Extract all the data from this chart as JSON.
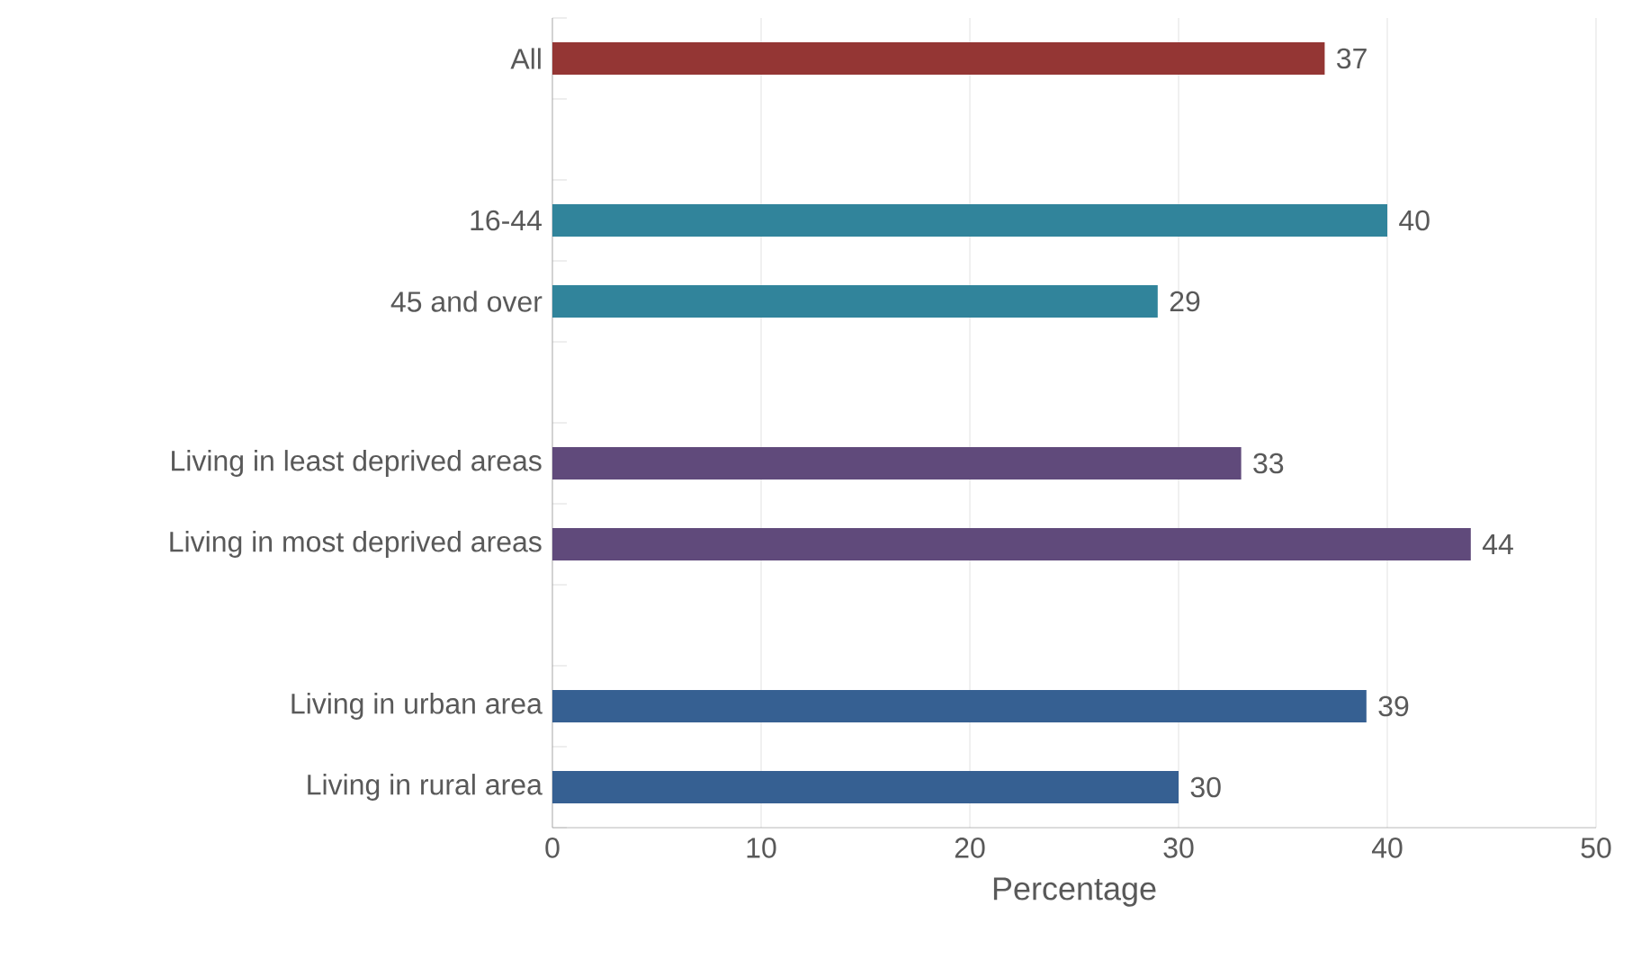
{
  "chart_data": {
    "type": "bar",
    "orientation": "horizontal",
    "xlabel": "Percentage",
    "categories": [
      "All",
      null,
      "16-44",
      "45 and over",
      null,
      "Living in least deprived areas",
      "Living in most deprived areas",
      null,
      "Living in urban area",
      "Living in rural area"
    ],
    "values": [
      37,
      null,
      40,
      29,
      null,
      33,
      44,
      null,
      39,
      30
    ],
    "colors": [
      "#943634",
      null,
      "#31849b",
      "#31849b",
      null,
      "#604a7b",
      "#604a7b",
      null,
      "#366092",
      "#366092"
    ],
    "data_labels": true,
    "xlim": [
      0,
      50
    ],
    "xticks": [
      0,
      10,
      20,
      30,
      40,
      50
    ],
    "grid": "x"
  }
}
